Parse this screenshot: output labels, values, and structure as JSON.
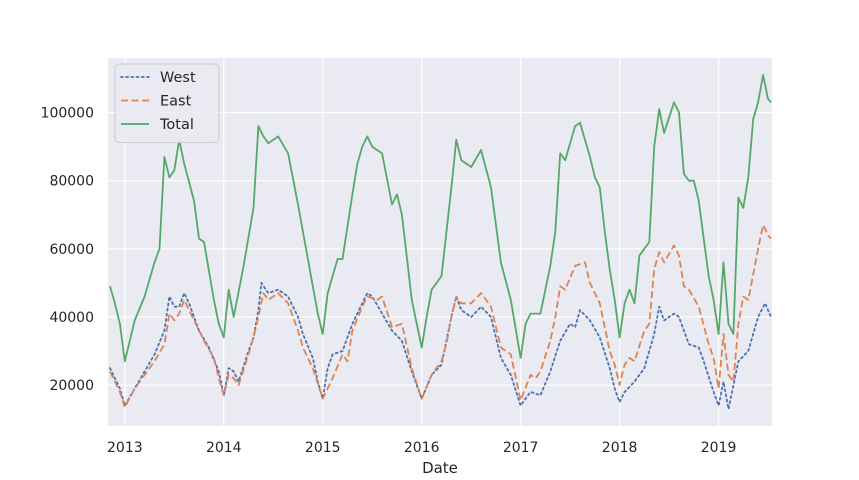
{
  "chart_data": {
    "type": "line",
    "title": "",
    "xlabel": "Date",
    "ylabel": "",
    "xlim": [
      2012.83,
      2019.54
    ],
    "ylim": [
      8000,
      116000
    ],
    "grid": true,
    "legend_position": "top-left",
    "x_ticks": [
      2013,
      2014,
      2015,
      2016,
      2017,
      2018,
      2019
    ],
    "x_tick_labels": [
      "2013",
      "2014",
      "2015",
      "2016",
      "2017",
      "2018",
      "2019"
    ],
    "y_ticks": [
      20000,
      40000,
      60000,
      80000,
      100000
    ],
    "y_tick_labels": [
      "20000",
      "40000",
      "60000",
      "80000",
      "100000"
    ],
    "series": [
      {
        "name": "West",
        "style": "dotted",
        "color": "#4c72b0",
        "points": [
          [
            2012.85,
            25000
          ],
          [
            2012.95,
            19000
          ],
          [
            2013.0,
            14000
          ],
          [
            2013.1,
            19000
          ],
          [
            2013.2,
            24000
          ],
          [
            2013.3,
            29000
          ],
          [
            2013.4,
            36000
          ],
          [
            2013.45,
            46000
          ],
          [
            2013.5,
            43000
          ],
          [
            2013.55,
            43000
          ],
          [
            2013.6,
            47000
          ],
          [
            2013.65,
            44000
          ],
          [
            2013.75,
            36000
          ],
          [
            2013.85,
            31000
          ],
          [
            2013.95,
            24000
          ],
          [
            2014.0,
            17000
          ],
          [
            2014.05,
            25000
          ],
          [
            2014.1,
            24000
          ],
          [
            2014.15,
            21000
          ],
          [
            2014.25,
            30000
          ],
          [
            2014.3,
            34000
          ],
          [
            2014.35,
            42000
          ],
          [
            2014.38,
            50000
          ],
          [
            2014.45,
            47000
          ],
          [
            2014.55,
            48000
          ],
          [
            2014.65,
            46000
          ],
          [
            2014.75,
            40000
          ],
          [
            2014.8,
            35000
          ],
          [
            2014.9,
            28000
          ],
          [
            2014.95,
            21000
          ],
          [
            2015.0,
            16000
          ],
          [
            2015.05,
            25000
          ],
          [
            2015.1,
            29000
          ],
          [
            2015.2,
            30000
          ],
          [
            2015.3,
            38000
          ],
          [
            2015.4,
            44000
          ],
          [
            2015.45,
            47000
          ],
          [
            2015.5,
            46000
          ],
          [
            2015.6,
            41000
          ],
          [
            2015.7,
            36000
          ],
          [
            2015.8,
            33000
          ],
          [
            2015.9,
            24000
          ],
          [
            2016.0,
            16000
          ],
          [
            2016.1,
            23000
          ],
          [
            2016.2,
            26000
          ],
          [
            2016.25,
            33000
          ],
          [
            2016.3,
            40000
          ],
          [
            2016.35,
            46000
          ],
          [
            2016.4,
            42000
          ],
          [
            2016.5,
            40000
          ],
          [
            2016.6,
            43000
          ],
          [
            2016.7,
            40000
          ],
          [
            2016.8,
            28000
          ],
          [
            2016.9,
            23000
          ],
          [
            2017.0,
            14000
          ],
          [
            2017.1,
            18000
          ],
          [
            2017.2,
            17000
          ],
          [
            2017.3,
            24000
          ],
          [
            2017.4,
            33000
          ],
          [
            2017.5,
            38000
          ],
          [
            2017.55,
            37000
          ],
          [
            2017.6,
            42000
          ],
          [
            2017.7,
            39000
          ],
          [
            2017.8,
            34000
          ],
          [
            2017.9,
            25000
          ],
          [
            2017.95,
            19000
          ],
          [
            2018.0,
            15000
          ],
          [
            2018.05,
            18000
          ],
          [
            2018.15,
            21000
          ],
          [
            2018.25,
            25000
          ],
          [
            2018.35,
            35000
          ],
          [
            2018.4,
            43000
          ],
          [
            2018.45,
            39000
          ],
          [
            2018.55,
            41000
          ],
          [
            2018.6,
            40000
          ],
          [
            2018.7,
            32000
          ],
          [
            2018.8,
            31000
          ],
          [
            2018.85,
            27000
          ],
          [
            2018.95,
            18000
          ],
          [
            2019.0,
            14000
          ],
          [
            2019.05,
            21000
          ],
          [
            2019.1,
            13000
          ],
          [
            2019.2,
            27000
          ],
          [
            2019.3,
            30000
          ],
          [
            2019.4,
            40000
          ],
          [
            2019.47,
            44000
          ],
          [
            2019.53,
            40000
          ]
        ]
      },
      {
        "name": "East",
        "style": "dashed",
        "color": "#dd8452",
        "points": [
          [
            2012.85,
            24000
          ],
          [
            2012.95,
            18000
          ],
          [
            2013.0,
            13500
          ],
          [
            2013.1,
            19000
          ],
          [
            2013.2,
            23000
          ],
          [
            2013.3,
            27000
          ],
          [
            2013.4,
            32000
          ],
          [
            2013.45,
            41000
          ],
          [
            2013.5,
            39000
          ],
          [
            2013.55,
            41000
          ],
          [
            2013.6,
            45000
          ],
          [
            2013.7,
            39000
          ],
          [
            2013.8,
            33000
          ],
          [
            2013.9,
            28000
          ],
          [
            2013.95,
            22000
          ],
          [
            2014.0,
            17000
          ],
          [
            2014.05,
            23000
          ],
          [
            2014.1,
            22000
          ],
          [
            2014.15,
            20000
          ],
          [
            2014.25,
            29000
          ],
          [
            2014.3,
            34000
          ],
          [
            2014.35,
            40000
          ],
          [
            2014.4,
            47000
          ],
          [
            2014.45,
            45000
          ],
          [
            2014.55,
            47000
          ],
          [
            2014.65,
            44000
          ],
          [
            2014.75,
            36000
          ],
          [
            2014.8,
            31000
          ],
          [
            2014.9,
            25000
          ],
          [
            2015.0,
            16000
          ],
          [
            2015.1,
            22000
          ],
          [
            2015.2,
            29000
          ],
          [
            2015.25,
            27000
          ],
          [
            2015.3,
            36000
          ],
          [
            2015.4,
            43000
          ],
          [
            2015.45,
            46000
          ],
          [
            2015.55,
            45000
          ],
          [
            2015.6,
            46000
          ],
          [
            2015.7,
            37000
          ],
          [
            2015.8,
            38000
          ],
          [
            2015.9,
            25000
          ],
          [
            2016.0,
            16000
          ],
          [
            2016.1,
            23000
          ],
          [
            2016.2,
            27000
          ],
          [
            2016.25,
            32000
          ],
          [
            2016.3,
            40000
          ],
          [
            2016.35,
            46000
          ],
          [
            2016.4,
            44000
          ],
          [
            2016.5,
            44000
          ],
          [
            2016.6,
            47000
          ],
          [
            2016.7,
            43000
          ],
          [
            2016.8,
            31000
          ],
          [
            2016.9,
            29000
          ],
          [
            2017.0,
            15500
          ],
          [
            2017.1,
            23000
          ],
          [
            2017.15,
            22000
          ],
          [
            2017.2,
            24000
          ],
          [
            2017.3,
            33000
          ],
          [
            2017.35,
            40000
          ],
          [
            2017.4,
            49000
          ],
          [
            2017.45,
            48000
          ],
          [
            2017.55,
            55000
          ],
          [
            2017.65,
            56000
          ],
          [
            2017.7,
            50000
          ],
          [
            2017.8,
            44000
          ],
          [
            2017.9,
            30000
          ],
          [
            2017.95,
            26000
          ],
          [
            2018.0,
            20000
          ],
          [
            2018.05,
            26000
          ],
          [
            2018.1,
            28000
          ],
          [
            2018.15,
            27000
          ],
          [
            2018.25,
            36000
          ],
          [
            2018.3,
            38000
          ],
          [
            2018.35,
            54000
          ],
          [
            2018.4,
            59000
          ],
          [
            2018.45,
            56000
          ],
          [
            2018.55,
            61000
          ],
          [
            2018.6,
            58000
          ],
          [
            2018.65,
            49000
          ],
          [
            2018.7,
            48000
          ],
          [
            2018.8,
            43000
          ],
          [
            2018.9,
            32000
          ],
          [
            2018.95,
            28000
          ],
          [
            2019.0,
            19000
          ],
          [
            2019.05,
            35000
          ],
          [
            2019.1,
            23000
          ],
          [
            2019.15,
            21000
          ],
          [
            2019.2,
            38000
          ],
          [
            2019.25,
            46000
          ],
          [
            2019.3,
            45000
          ],
          [
            2019.4,
            60000
          ],
          [
            2019.45,
            67000
          ],
          [
            2019.5,
            64000
          ],
          [
            2019.53,
            63000
          ]
        ]
      },
      {
        "name": "Total",
        "style": "solid",
        "color": "#55a868",
        "points": [
          [
            2012.85,
            49000
          ],
          [
            2012.9,
            44000
          ],
          [
            2012.95,
            38000
          ],
          [
            2013.0,
            27000
          ],
          [
            2013.05,
            33000
          ],
          [
            2013.1,
            39000
          ],
          [
            2013.2,
            46000
          ],
          [
            2013.3,
            56000
          ],
          [
            2013.35,
            60000
          ],
          [
            2013.4,
            87000
          ],
          [
            2013.45,
            81000
          ],
          [
            2013.5,
            83000
          ],
          [
            2013.55,
            92000
          ],
          [
            2013.6,
            85000
          ],
          [
            2013.7,
            74000
          ],
          [
            2013.75,
            63000
          ],
          [
            2013.8,
            62000
          ],
          [
            2013.9,
            45000
          ],
          [
            2013.95,
            38000
          ],
          [
            2014.0,
            34000
          ],
          [
            2014.05,
            48000
          ],
          [
            2014.1,
            40000
          ],
          [
            2014.2,
            55000
          ],
          [
            2014.3,
            72000
          ],
          [
            2014.35,
            96000
          ],
          [
            2014.4,
            93000
          ],
          [
            2014.45,
            91000
          ],
          [
            2014.55,
            93000
          ],
          [
            2014.65,
            88000
          ],
          [
            2014.75,
            73000
          ],
          [
            2014.85,
            57000
          ],
          [
            2014.95,
            41000
          ],
          [
            2015.0,
            35000
          ],
          [
            2015.05,
            47000
          ],
          [
            2015.1,
            52000
          ],
          [
            2015.15,
            57000
          ],
          [
            2015.2,
            57000
          ],
          [
            2015.3,
            76000
          ],
          [
            2015.35,
            85000
          ],
          [
            2015.4,
            90000
          ],
          [
            2015.45,
            93000
          ],
          [
            2015.5,
            90000
          ],
          [
            2015.6,
            88000
          ],
          [
            2015.7,
            73000
          ],
          [
            2015.75,
            76000
          ],
          [
            2015.8,
            70000
          ],
          [
            2015.9,
            45000
          ],
          [
            2016.0,
            31000
          ],
          [
            2016.05,
            40000
          ],
          [
            2016.1,
            48000
          ],
          [
            2016.2,
            52000
          ],
          [
            2016.3,
            78000
          ],
          [
            2016.35,
            92000
          ],
          [
            2016.4,
            86000
          ],
          [
            2016.5,
            84000
          ],
          [
            2016.6,
            89000
          ],
          [
            2016.7,
            78000
          ],
          [
            2016.8,
            56000
          ],
          [
            2016.9,
            45000
          ],
          [
            2017.0,
            28000
          ],
          [
            2017.05,
            38000
          ],
          [
            2017.1,
            41000
          ],
          [
            2017.2,
            41000
          ],
          [
            2017.3,
            55000
          ],
          [
            2017.35,
            65000
          ],
          [
            2017.4,
            88000
          ],
          [
            2017.45,
            86000
          ],
          [
            2017.55,
            96000
          ],
          [
            2017.6,
            97000
          ],
          [
            2017.7,
            87000
          ],
          [
            2017.75,
            81000
          ],
          [
            2017.8,
            78000
          ],
          [
            2017.85,
            65000
          ],
          [
            2017.9,
            54000
          ],
          [
            2017.95,
            45000
          ],
          [
            2018.0,
            34000
          ],
          [
            2018.05,
            44000
          ],
          [
            2018.1,
            48000
          ],
          [
            2018.15,
            44000
          ],
          [
            2018.2,
            58000
          ],
          [
            2018.3,
            62000
          ],
          [
            2018.35,
            90000
          ],
          [
            2018.4,
            101000
          ],
          [
            2018.45,
            94000
          ],
          [
            2018.55,
            103000
          ],
          [
            2018.6,
            100000
          ],
          [
            2018.65,
            82000
          ],
          [
            2018.7,
            80000
          ],
          [
            2018.75,
            80000
          ],
          [
            2018.8,
            74000
          ],
          [
            2018.85,
            63000
          ],
          [
            2018.9,
            52000
          ],
          [
            2018.95,
            45000
          ],
          [
            2019.0,
            35000
          ],
          [
            2019.05,
            56000
          ],
          [
            2019.1,
            38000
          ],
          [
            2019.15,
            35000
          ],
          [
            2019.2,
            75000
          ],
          [
            2019.25,
            72000
          ],
          [
            2019.3,
            81000
          ],
          [
            2019.35,
            98000
          ],
          [
            2019.4,
            103000
          ],
          [
            2019.45,
            111000
          ],
          [
            2019.5,
            104000
          ],
          [
            2019.53,
            103000
          ]
        ]
      }
    ]
  }
}
